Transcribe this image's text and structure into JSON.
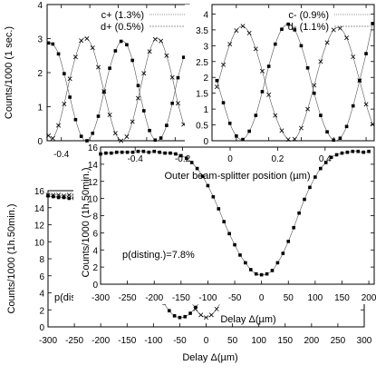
{
  "chart_data": [
    {
      "id": "top-left",
      "type": "scatter",
      "ylabel": "Counts/1000 (1 sec.)",
      "xlim": [
        -0.5,
        0.5
      ],
      "ylim": [
        0,
        4
      ],
      "x_ticks": [
        "-0.4",
        "-0.2",
        "0",
        "0.2",
        "0.4"
      ],
      "y_ticks": [
        "0",
        "1",
        "2",
        "3",
        "4"
      ],
      "legend_position": "top-right",
      "series": [
        {
          "name": "c+ (1.3%)",
          "marker": "square",
          "x": [
            -0.49,
            -0.46,
            -0.42,
            -0.38,
            -0.34,
            -0.3,
            -0.26,
            -0.22,
            -0.18,
            -0.14,
            -0.1,
            -0.06,
            -0.02,
            0.02,
            0.06,
            0.1,
            0.14,
            0.18,
            0.22,
            0.26,
            0.3,
            0.34,
            0.38,
            0.42,
            0.46
          ],
          "y": [
            2.87,
            2.84,
            2.55,
            1.97,
            1.28,
            0.62,
            0.13,
            0.0,
            0.22,
            0.72,
            1.43,
            2.13,
            2.64,
            2.92,
            2.82,
            2.36,
            1.62,
            0.88,
            0.3,
            0.02,
            0.08,
            0.45,
            1.1,
            1.85,
            2.45
          ]
        },
        {
          "name": "d+ (0.5%)",
          "marker": "cross",
          "x": [
            -0.49,
            -0.46,
            -0.42,
            -0.38,
            -0.34,
            -0.3,
            -0.26,
            -0.22,
            -0.18,
            -0.14,
            -0.1,
            -0.06,
            -0.02,
            0.02,
            0.06,
            0.1,
            0.14,
            0.18,
            0.22,
            0.26,
            0.3,
            0.34,
            0.38,
            0.42,
            0.46
          ],
          "y": [
            0.15,
            0.07,
            0.45,
            1.08,
            1.82,
            2.46,
            2.94,
            3.0,
            2.73,
            2.16,
            1.45,
            0.76,
            0.22,
            0.0,
            0.12,
            0.56,
            1.25,
            1.98,
            2.62,
            2.98,
            2.93,
            2.5,
            1.86,
            1.1,
            0.48
          ]
        }
      ]
    },
    {
      "id": "top-right",
      "type": "scatter",
      "xlim": [
        -0.55,
        0.45
      ],
      "ylim": [
        0,
        4.3
      ],
      "x_ticks": [
        "-0.4",
        "-0.2",
        "0",
        "0.2",
        "0.4"
      ],
      "y_ticks": [
        "0",
        "0.5",
        "1",
        "1.5",
        "2",
        "2.5",
        "3",
        "3.5",
        "4"
      ],
      "legend_position": "top-right",
      "series": [
        {
          "name": "c- (0.9%)",
          "marker": "cross",
          "x": [
            -0.52,
            -0.48,
            -0.44,
            -0.4,
            -0.36,
            -0.32,
            -0.28,
            -0.24,
            -0.2,
            -0.16,
            -0.12,
            -0.08,
            -0.04,
            0.0,
            0.04,
            0.08,
            0.12,
            0.16,
            0.2,
            0.24,
            0.28,
            0.32,
            0.36,
            0.4,
            0.44
          ],
          "y": [
            1.7,
            2.4,
            3.05,
            3.48,
            3.62,
            3.4,
            2.9,
            2.2,
            1.45,
            0.8,
            0.32,
            0.04,
            0.05,
            0.4,
            1.0,
            1.75,
            2.5,
            3.1,
            3.5,
            3.55,
            3.25,
            2.65,
            1.9,
            1.15,
            0.52
          ]
        },
        {
          "name": "d- (1.1%)",
          "marker": "square",
          "x": [
            -0.52,
            -0.48,
            -0.44,
            -0.4,
            -0.36,
            -0.32,
            -0.28,
            -0.24,
            -0.2,
            -0.16,
            -0.12,
            -0.08,
            -0.04,
            0.0,
            0.04,
            0.08,
            0.12,
            0.16,
            0.2,
            0.24,
            0.28,
            0.32,
            0.36,
            0.4,
            0.44
          ],
          "y": [
            1.9,
            1.2,
            0.55,
            0.15,
            0.04,
            0.3,
            0.8,
            1.55,
            2.35,
            3.05,
            3.52,
            3.68,
            3.5,
            3.0,
            2.3,
            1.5,
            0.8,
            0.28,
            0.02,
            0.08,
            0.45,
            1.1,
            1.9,
            2.75,
            3.7
          ]
        }
      ]
    },
    {
      "id": "inset",
      "type": "scatter",
      "title": "Outer beam-splitter position (µm)",
      "ylabel": "Counts/1000 (1h.50min.)",
      "xlabel": "Delay Δ(µm)",
      "xlim": [
        -300,
        210
      ],
      "ylim": [
        0,
        16
      ],
      "x_ticks": [
        "-300",
        "-250",
        "-200",
        "-150",
        "-100",
        "-50",
        "0",
        "50",
        "100",
        "150",
        "200"
      ],
      "y_ticks": [
        "0",
        "2",
        "4",
        "6",
        "8",
        "10",
        "12",
        "14",
        "16"
      ],
      "top_x_ticks": [
        "-0.4",
        "-0.2",
        "0",
        "0.2",
        "0.4"
      ],
      "annotation": "p(disting.)=7.8%",
      "series": [
        {
          "marker": "square",
          "x": [
            -300,
            -290,
            -280,
            -270,
            -260,
            -250,
            -240,
            -230,
            -220,
            -210,
            -200,
            -190,
            -180,
            -170,
            -160,
            -150,
            -140,
            -130,
            -120,
            -110,
            -100,
            -90,
            -80,
            -70,
            -60,
            -50,
            -40,
            -30,
            -20,
            -10,
            0,
            10,
            20,
            30,
            40,
            50,
            60,
            70,
            80,
            90,
            100,
            110,
            120,
            130,
            140,
            150,
            160,
            170,
            180,
            190,
            200
          ],
          "y": [
            15.2,
            15.3,
            15.3,
            15.4,
            15.4,
            15.4,
            15.4,
            15.5,
            15.5,
            15.4,
            15.5,
            15.4,
            15.3,
            15.3,
            15.2,
            15.0,
            14.7,
            14.2,
            13.5,
            12.6,
            11.5,
            10.2,
            8.8,
            7.3,
            5.9,
            4.6,
            3.4,
            2.5,
            1.7,
            1.2,
            1.1,
            1.2,
            1.6,
            2.5,
            3.6,
            5.0,
            6.6,
            8.3,
            9.9,
            11.3,
            12.5,
            13.5,
            14.2,
            14.8,
            15.1,
            15.3,
            15.4,
            15.5,
            15.5,
            15.4,
            15.5
          ]
        }
      ]
    },
    {
      "id": "main",
      "type": "scatter",
      "ylabel": "Counts/1000 (1h.50min.)",
      "xlabel": "Delay Δ(µm)",
      "xlim": [
        -300,
        300
      ],
      "ylim": [
        0,
        16
      ],
      "x_ticks": [
        "-300",
        "-250",
        "-200",
        "-150",
        "-100",
        "-50",
        "0",
        "50",
        "100",
        "150",
        "200",
        "250",
        "300"
      ],
      "y_ticks": [
        "0",
        "2",
        "4",
        "6",
        "8",
        "10",
        "12",
        "14",
        "16"
      ],
      "annotation": "p(disting.)=7.8%",
      "series": [
        {
          "marker": "square",
          "x": [
            -300,
            -290,
            -280,
            -270,
            -260,
            -250,
            -240,
            -230,
            -220,
            -210,
            -200,
            -190,
            -180,
            -170,
            -160,
            -150,
            -140,
            -130,
            -120,
            -110,
            -100,
            -90,
            -80,
            -70,
            -60,
            -50,
            -40,
            -30,
            -20,
            -10,
            0,
            10,
            20,
            30,
            40,
            50,
            60,
            70,
            80,
            90,
            100,
            110,
            120,
            130,
            140,
            150,
            160,
            170,
            180,
            190,
            200,
            210,
            220,
            230,
            240,
            250,
            260,
            270,
            280,
            290,
            300
          ],
          "y": [
            15.4,
            15.3,
            15.2,
            15.2,
            15.1,
            15.1,
            15.0,
            15.0,
            14.9,
            14.7,
            14.5,
            14.2,
            13.8,
            13.2,
            12.6,
            11.8,
            10.7,
            9.5,
            8.1,
            6.7,
            5.2,
            3.9,
            2.8,
            1.9,
            1.3,
            1.1,
            1.2,
            1.6,
            2.3,
            3.1,
            4.2,
            5.4,
            6.7,
            8.0,
            9.3,
            10.5,
            11.5,
            12.4,
            13.2,
            13.8,
            14.3,
            14.7,
            15.0,
            15.2,
            15.3,
            15.4,
            15.5,
            15.4,
            15.5,
            15.4,
            15.5,
            15.6,
            15.5,
            15.5,
            15.6,
            15.5,
            15.6,
            15.5,
            15.5,
            15.6,
            15.5
          ]
        },
        {
          "marker": "cross",
          "x": [
            -300,
            -290,
            -280,
            -270,
            -260,
            -250,
            -240,
            -230,
            -220,
            -210,
            -200,
            -190,
            -180,
            -170,
            -160,
            -150,
            -140,
            -130,
            -120,
            -110,
            -100,
            -90,
            -80,
            -70,
            -60,
            -50,
            -40,
            -30,
            -20,
            -10,
            0,
            10,
            20,
            30,
            40,
            50,
            60,
            70,
            80,
            90,
            100,
            110,
            120,
            130,
            140,
            150,
            160,
            170,
            180,
            190,
            200,
            210,
            220,
            230,
            240,
            250,
            260,
            270,
            280,
            290,
            300
          ],
          "y": [
            15.5,
            15.5,
            15.5,
            15.4,
            15.5,
            15.4,
            15.5,
            15.4,
            15.5,
            15.5,
            15.4,
            15.5,
            15.4,
            15.4,
            15.3,
            15.2,
            15.0,
            14.7,
            14.3,
            13.7,
            12.9,
            11.9,
            10.7,
            9.3,
            7.8,
            6.2,
            4.6,
            3.2,
            2.1,
            1.4,
            1.1,
            1.4,
            2.1,
            3.2,
            4.7,
            6.3,
            7.9,
            9.4,
            10.8,
            12.0,
            13.0,
            13.8,
            14.4,
            14.8,
            15.1,
            15.3,
            15.4,
            15.5,
            15.5,
            15.4,
            15.5,
            15.5,
            15.4,
            15.5,
            15.5,
            15.4,
            15.5,
            15.5,
            15.4,
            15.5,
            15.5
          ]
        }
      ]
    }
  ]
}
